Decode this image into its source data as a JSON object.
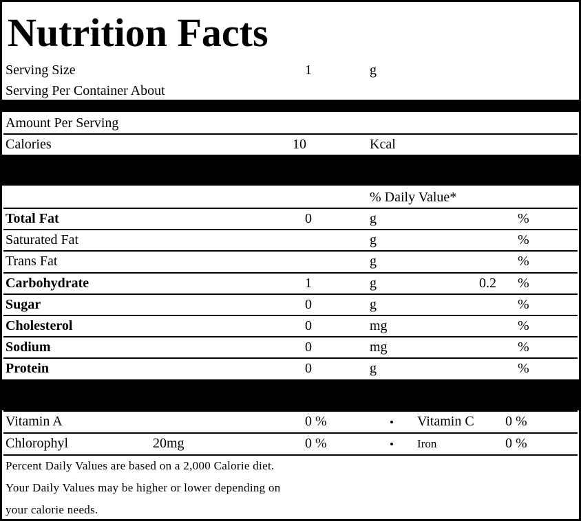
{
  "title": "Nutrition Facts",
  "serving": {
    "size_label": "Serving Size",
    "size_value": 1,
    "size_unit": "g",
    "per_container": "Serving Per Container About"
  },
  "amount_per_serving": "Amount Per Serving",
  "calories": {
    "label": "Calories",
    "value": 10,
    "unit": "Kcal"
  },
  "daily_value_header": "% Daily Value*",
  "nutrients": [
    {
      "name": "Total Fat",
      "bold": true,
      "amount": 0,
      "unit": "g",
      "pct": "%"
    },
    {
      "name": "Saturated Fat",
      "bold": false,
      "unit": "g",
      "pct": "%"
    },
    {
      "name": "Trans Fat",
      "bold": false,
      "unit": "g",
      "pct": "%"
    },
    {
      "name": "Carbohydrate",
      "bold": true,
      "amount": 1,
      "unit": "g",
      "dv": 0.2,
      "pct": "%"
    },
    {
      "name": "Sugar",
      "bold": true,
      "amount": 0,
      "unit": "g",
      "pct": "%"
    },
    {
      "name": "Cholesterol",
      "bold": true,
      "amount": 0,
      "unit": "mg",
      "pct": "%"
    },
    {
      "name": "Sodium",
      "bold": true,
      "amount": 0,
      "unit": "mg",
      "pct": "%"
    },
    {
      "name": "Protein",
      "bold": true,
      "amount": 0,
      "unit": "g",
      "pct": "%"
    }
  ],
  "vitamins": [
    {
      "name": "Vitamin A",
      "value": "0 %",
      "right_name": "Vitamin C",
      "right_value": "0 %"
    },
    {
      "name": "Chlorophyl",
      "extra": "20mg",
      "value": "0 %",
      "right_name": "Iron",
      "right_value": "0 %"
    }
  ],
  "footnotes": [
    "Percent Daily Values are based on a 2,000 Calorie diet.",
    "Your Daily Values may be higher or lower depending on",
    "your calorie needs."
  ]
}
